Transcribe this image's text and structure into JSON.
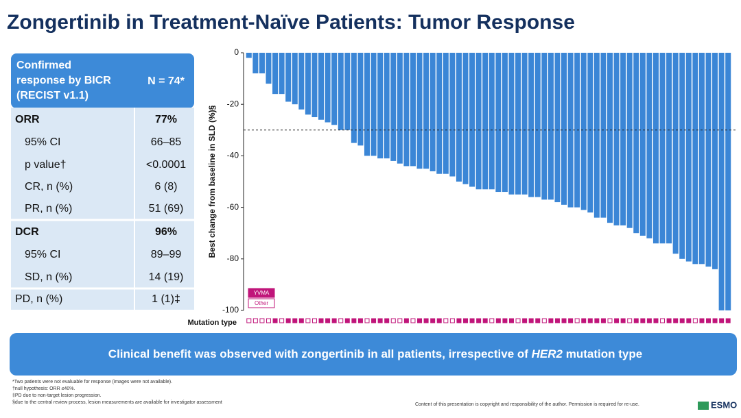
{
  "title": "Zongertinib in Treatment-Naïve Patients: Tumor Response",
  "table": {
    "header": [
      "Confirmed",
      "response by BICR",
      "(RECIST v1.1)"
    ],
    "header_value": "N = 74*",
    "rows": [
      [
        "ORR",
        "77%"
      ],
      [
        "95% CI",
        "66–85"
      ],
      [
        "p value†",
        "<0.0001"
      ],
      [
        "CR, n (%)",
        "6 (8)"
      ],
      [
        "PR, n (%)",
        "51 (69)"
      ],
      [
        "DCR",
        "96%"
      ],
      [
        "95% CI",
        "89–99"
      ],
      [
        "SD, n (%)",
        "14 (19)"
      ],
      [
        "PD, n (%)",
        "1 (1)‡"
      ]
    ]
  },
  "chart_data": {
    "type": "bar",
    "y_label": "Best change from baseline in SLD (%)§",
    "values": [
      -2,
      -8,
      -8,
      -12,
      -16,
      -16,
      -19,
      -20,
      -22,
      -24,
      -25,
      -26,
      -27,
      -28,
      -30,
      -30,
      -35,
      -36,
      -40,
      -40,
      -41,
      -41,
      -42,
      -43,
      -44,
      -44,
      -45,
      -45,
      -46,
      -47,
      -47,
      -48,
      -50,
      -51,
      -52,
      -53,
      -53,
      -53,
      -54,
      -54,
      -55,
      -55,
      -55,
      -56,
      -56,
      -57,
      -57,
      -58,
      -59,
      -60,
      -60,
      -61,
      -62,
      -64,
      -64,
      -66,
      -67,
      -67,
      -68,
      -70,
      -71,
      -72,
      -74,
      -74,
      -74,
      -78,
      -80,
      -81,
      -82,
      -82,
      -83,
      -84,
      -100,
      -100
    ],
    "color": "#3b86d6",
    "ylim": [
      -100,
      0
    ],
    "yticks": [
      0,
      -20,
      -40,
      -60,
      -80,
      -100
    ],
    "reference_line": -30,
    "mutation_label": "Mutation type",
    "mutation_legend": [
      {
        "name": "YVMA",
        "color": "#c0157a"
      },
      {
        "name": "Other",
        "color": "#ffffff"
      }
    ],
    "mutation_type": [
      1,
      1,
      1,
      1,
      0,
      1,
      0,
      0,
      0,
      1,
      1,
      0,
      0,
      0,
      1,
      0,
      0,
      0,
      1,
      0,
      0,
      0,
      1,
      1,
      0,
      1,
      0,
      0,
      0,
      0,
      1,
      1,
      0,
      0,
      0,
      0,
      0,
      1,
      0,
      0,
      0,
      1,
      0,
      0,
      0,
      1,
      0,
      0,
      0,
      0,
      1,
      0,
      0,
      0,
      0,
      1,
      0,
      0,
      1,
      0,
      0,
      0,
      0,
      1,
      0,
      0,
      0,
      0,
      1,
      0,
      0,
      0,
      0,
      0
    ]
  },
  "banner": [
    "Clinical benefit was observed with zongertinib in all patients, irrespective of ",
    "HER2",
    " mutation type"
  ],
  "footnotes": [
    "*Two patients were not evaluable for response (images were not available).",
    "†null hypothesis: ORR ≤40%.",
    "‡PD due to non-target lesion progression.",
    "§due to the central review process, lesion measurements are available for investigator assessment"
  ],
  "copyright": "Content of this presentation is copyright and responsibility of the author. Permission is required for re-use.",
  "logo": "ESMO"
}
